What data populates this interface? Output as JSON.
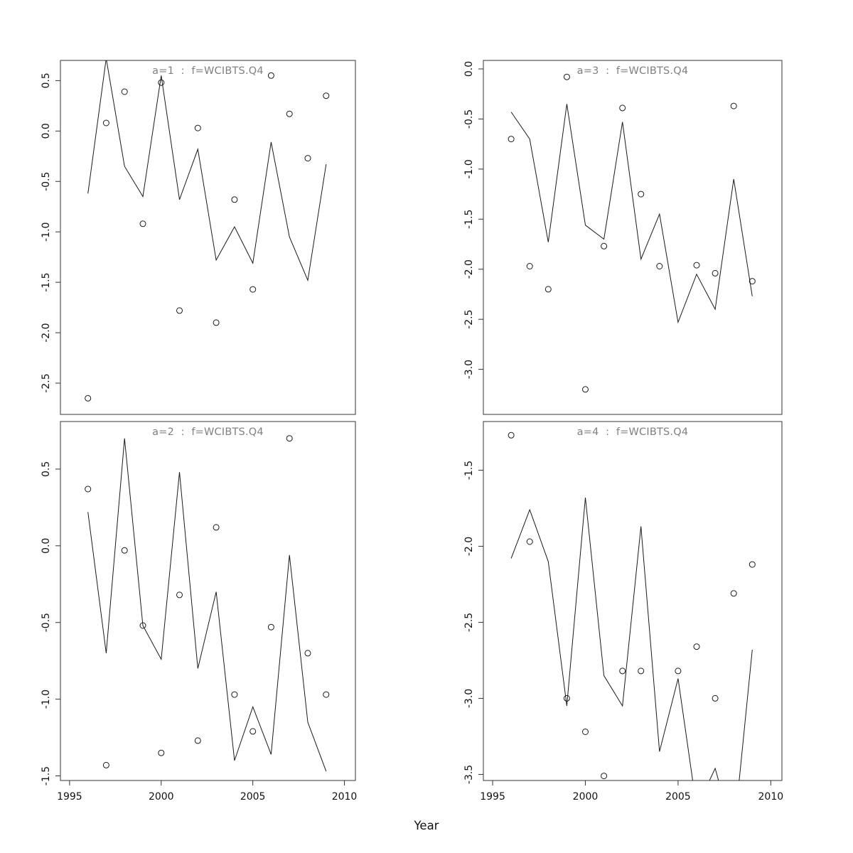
{
  "figure": {
    "xlabel": "Year",
    "title_color": "#808080",
    "axis_color": "#333333",
    "line_color": "#1a1a1a",
    "point_color": "#1a1a1a",
    "background": "#ffffff"
  },
  "chart_data": [
    {
      "type": "line",
      "panel_id": "a1",
      "position": "top-left",
      "title": "a=1  :  f=WCIBTS.Q4",
      "x": [
        1996,
        1997,
        1998,
        1999,
        2000,
        2001,
        2002,
        2003,
        2004,
        2005,
        2006,
        2007,
        2008,
        2009
      ],
      "series": [
        {
          "name": "fitted-line",
          "style": "line",
          "values": [
            -0.62,
            0.72,
            -0.35,
            -0.65,
            0.55,
            -0.68,
            -0.18,
            -1.28,
            -0.95,
            -1.31,
            -0.11,
            -1.05,
            -1.48,
            -0.33
          ]
        },
        {
          "name": "observed-points",
          "style": "points",
          "values": [
            -2.65,
            0.08,
            0.39,
            -0.92,
            0.48,
            -1.78,
            0.03,
            -1.9,
            -0.68,
            -1.57,
            0.55,
            0.17,
            -0.27,
            0.35
          ]
        }
      ],
      "xlim": [
        1994.5,
        2010.6
      ],
      "ylim": [
        -2.81,
        0.7
      ],
      "xticks": [
        1995,
        2000,
        2005,
        2010
      ],
      "yticks": [
        0.5,
        0.0,
        -0.5,
        -1.0,
        -1.5,
        -2.0,
        -2.5
      ],
      "show_x_labels": false,
      "grid": false,
      "legend": "none"
    },
    {
      "type": "line",
      "panel_id": "a3",
      "position": "top-right",
      "title": "a=3  :  f=WCIBTS.Q4",
      "x": [
        1996,
        1997,
        1998,
        1999,
        2000,
        2001,
        2002,
        2003,
        2004,
        2005,
        2006,
        2007,
        2008,
        2009
      ],
      "series": [
        {
          "name": "fitted-line",
          "style": "line",
          "values": [
            -0.43,
            -0.7,
            -1.73,
            -0.35,
            -1.56,
            -1.7,
            -0.53,
            -1.9,
            -1.45,
            -2.53,
            -2.05,
            -2.4,
            -1.1,
            -2.27
          ]
        },
        {
          "name": "observed-points",
          "style": "points",
          "values": [
            -0.7,
            -1.97,
            -2.2,
            -0.08,
            -3.2,
            -1.77,
            -0.39,
            -1.25,
            -1.97,
            null,
            -1.96,
            -2.04,
            -0.37,
            -2.12
          ]
        }
      ],
      "xlim": [
        1994.5,
        2010.6
      ],
      "ylim": [
        -3.45,
        0.085
      ],
      "xticks": [
        1995,
        2000,
        2005,
        2010
      ],
      "yticks": [
        0.0,
        -0.5,
        -1.0,
        -1.5,
        -2.0,
        -2.5,
        -3.0
      ],
      "show_x_labels": false,
      "grid": false,
      "legend": "none"
    },
    {
      "type": "line",
      "panel_id": "a2",
      "position": "bottom-left",
      "title": "a=2  :  f=WCIBTS.Q4",
      "x": [
        1996,
        1997,
        1998,
        1999,
        2000,
        2001,
        2002,
        2003,
        2004,
        2005,
        2006,
        2007,
        2008,
        2009
      ],
      "series": [
        {
          "name": "fitted-line",
          "style": "line",
          "values": [
            0.22,
            -0.7,
            0.7,
            -0.52,
            -0.74,
            0.48,
            -0.8,
            -0.3,
            -1.4,
            -1.05,
            -1.36,
            -0.06,
            -1.15,
            -1.47
          ]
        },
        {
          "name": "observed-points",
          "style": "points",
          "values": [
            0.37,
            -1.43,
            -0.03,
            -0.52,
            -1.35,
            -0.32,
            -1.27,
            0.12,
            -0.97,
            -1.21,
            -0.53,
            0.7,
            -0.7,
            -0.97
          ]
        }
      ],
      "xlim": [
        1994.5,
        2010.6
      ],
      "ylim": [
        -1.53,
        0.81
      ],
      "xticks": [
        1995,
        2000,
        2005,
        2010
      ],
      "yticks": [
        0.5,
        0.0,
        -0.5,
        -1.0,
        -1.5
      ],
      "show_x_labels": true,
      "grid": false,
      "legend": "none"
    },
    {
      "type": "line",
      "panel_id": "a4",
      "position": "bottom-right",
      "title": "a=4  :  f=WCIBTS.Q4",
      "x": [
        1996,
        1997,
        1998,
        1999,
        2000,
        2001,
        2002,
        2003,
        2004,
        2005,
        2006,
        2007,
        2008,
        2009
      ],
      "series": [
        {
          "name": "fitted-line",
          "style": "line",
          "values": [
            -2.08,
            -1.76,
            -2.1,
            -3.05,
            -1.68,
            -2.85,
            -3.05,
            -1.87,
            -3.35,
            -2.87,
            -3.72,
            -3.46,
            -3.9,
            -2.68
          ]
        },
        {
          "name": "observed-points",
          "style": "points",
          "values": [
            -1.27,
            -1.97,
            null,
            -3.0,
            -3.22,
            -3.51,
            -2.82,
            -2.82,
            null,
            -2.82,
            -2.66,
            -3.0,
            -2.31,
            -2.12
          ]
        }
      ],
      "xlim": [
        1994.5,
        2010.6
      ],
      "ylim": [
        -3.54,
        -1.18
      ],
      "xticks": [
        1995,
        2000,
        2005,
        2010
      ],
      "yticks": [
        -1.5,
        -2.0,
        -2.5,
        -3.0,
        -3.5
      ],
      "show_x_labels": true,
      "grid": false,
      "legend": "none"
    }
  ]
}
